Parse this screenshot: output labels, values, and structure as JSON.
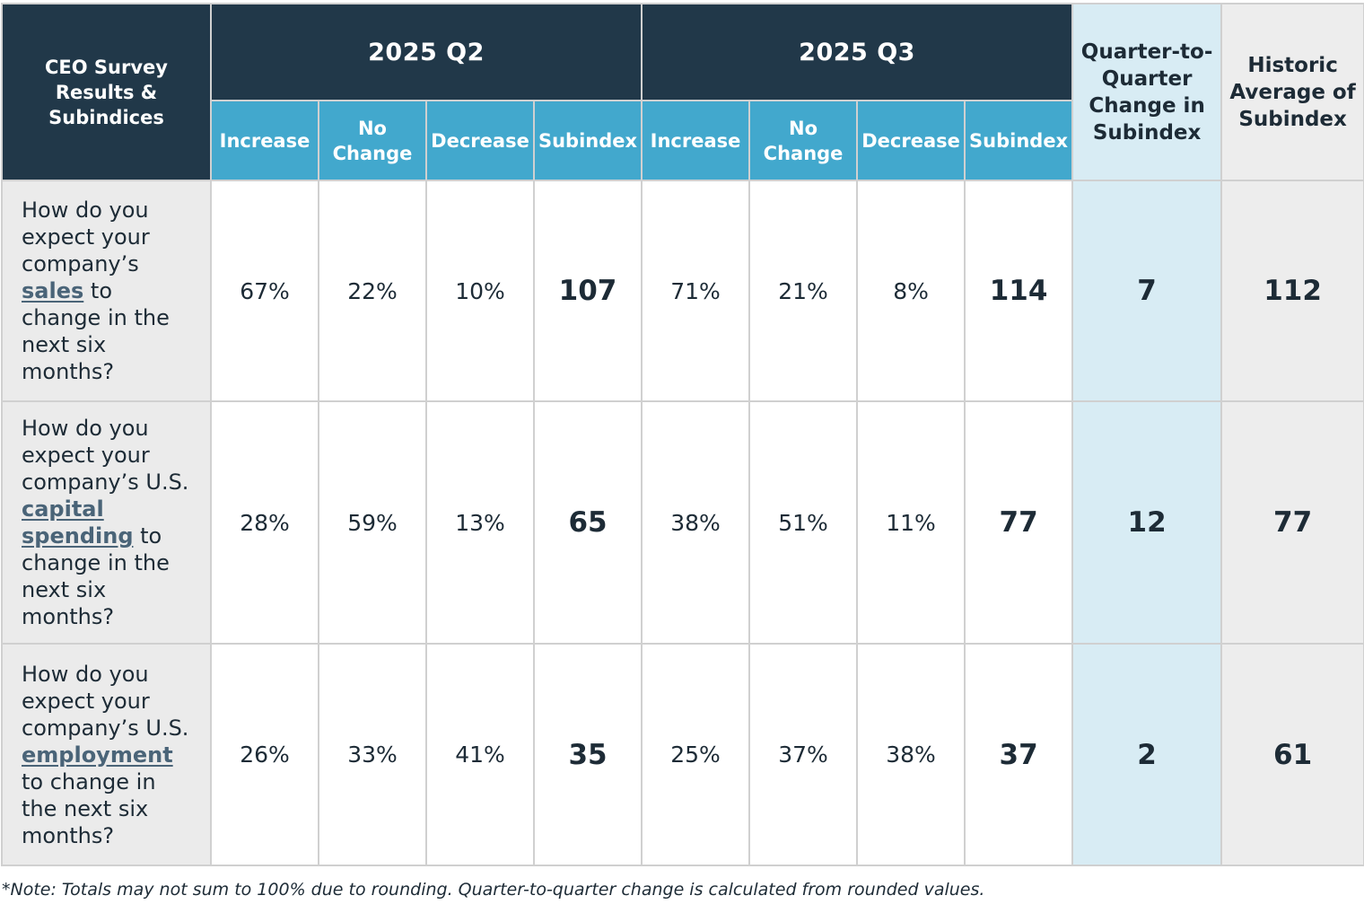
{
  "table": {
    "corner_header": "CEO Survey Results & Subindices",
    "periods": [
      "2025 Q2",
      "2025 Q3"
    ],
    "sub_headers": [
      "Increase",
      "No Change",
      "Decrease",
      "Subindex"
    ],
    "change_header": "Quarter-to-Quarter Change in Subindex",
    "historic_header": "Historic Average of Subindex",
    "colors": {
      "header_dark": "#213849",
      "header_blue": "#42a8cd",
      "change_bg": "#d8ecf4",
      "historic_bg": "#ededed",
      "question_bg": "#ebebeb",
      "text": "#1d2b36"
    },
    "rows": [
      {
        "question_before": "How do you expect your company’s ",
        "question_keyword": "sales",
        "question_after": " to change in the next six months?",
        "q2": {
          "increase": "67%",
          "no_change": "22%",
          "decrease": "10%",
          "subindex": "107"
        },
        "q3": {
          "increase": "71%",
          "no_change": "21%",
          "decrease": "8%",
          "subindex": "114"
        },
        "change": "7",
        "historic": "112"
      },
      {
        "question_before": "How do you expect your company’s U.S. ",
        "question_keyword": "capital spending",
        "question_after": " to change in the next six months?",
        "q2": {
          "increase": "28%",
          "no_change": "59%",
          "decrease": "13%",
          "subindex": "65"
        },
        "q3": {
          "increase": "38%",
          "no_change": "51%",
          "decrease": "11%",
          "subindex": "77"
        },
        "change": "12",
        "historic": "77"
      },
      {
        "question_before": "How do you expect your company’s U.S. ",
        "question_keyword": "employment",
        "question_after": " to change in the next six months?",
        "q2": {
          "increase": "26%",
          "no_change": "33%",
          "decrease": "41%",
          "subindex": "35"
        },
        "q3": {
          "increase": "25%",
          "no_change": "37%",
          "decrease": "38%",
          "subindex": "37"
        },
        "change": "2",
        "historic": "61"
      }
    ]
  },
  "note": "*Note: Totals may not sum to 100% due to rounding. Quarter-to-quarter change is calculated from rounded values."
}
